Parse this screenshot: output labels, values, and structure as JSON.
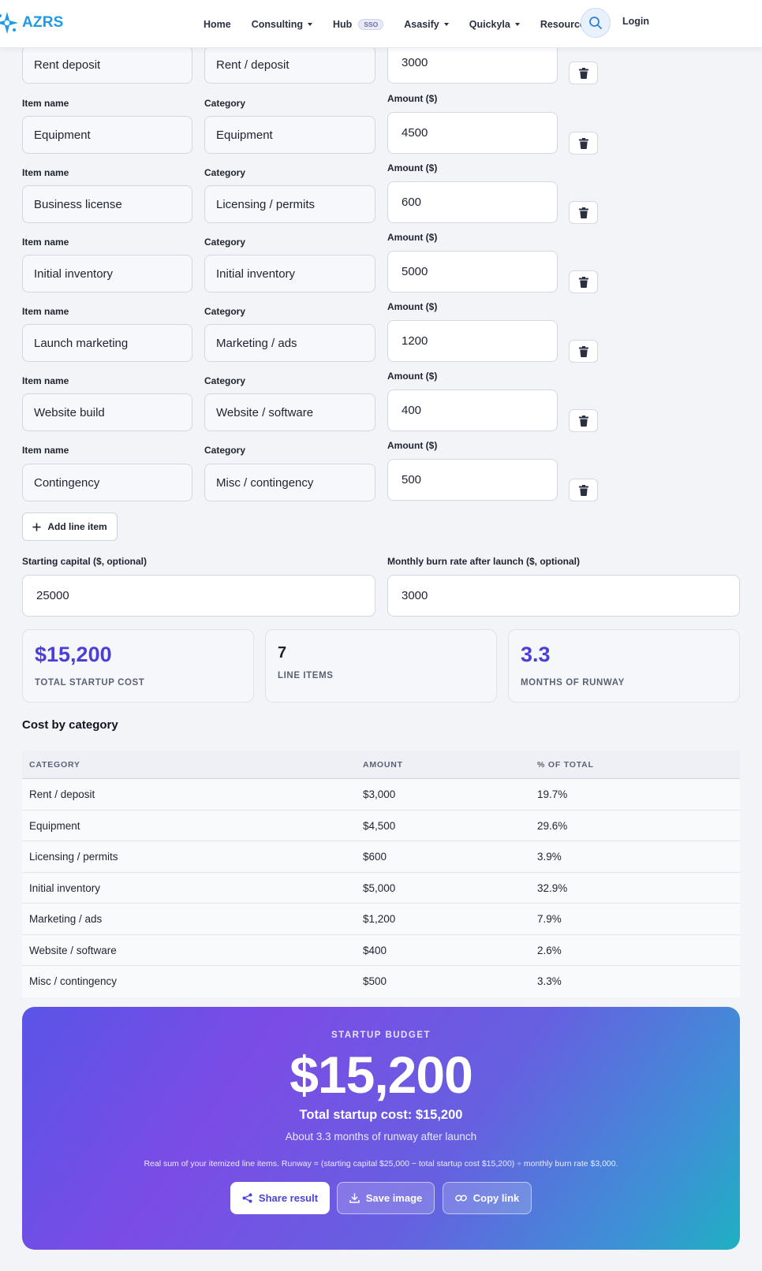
{
  "nav": {
    "brand": "AZRS",
    "links": [
      {
        "label": "Home",
        "dropdown": false
      },
      {
        "label": "Consulting",
        "dropdown": true
      },
      {
        "label": "Hub",
        "dropdown": false,
        "badge": "SSO"
      },
      {
        "label": "Asasify",
        "dropdown": true
      },
      {
        "label": "Quickyla",
        "dropdown": true
      },
      {
        "label": "Resources",
        "dropdown": true
      }
    ],
    "search_icon": "search-icon",
    "login": "Login"
  },
  "labels": {
    "item_name": "Item name",
    "category": "Category",
    "amount": "Amount ($)"
  },
  "items": [
    {
      "name": "Rent deposit",
      "category": "Rent / deposit",
      "amount": "3000"
    },
    {
      "name": "Equipment",
      "category": "Equipment",
      "amount": "4500"
    },
    {
      "name": "Business license",
      "category": "Licensing / permits",
      "amount": "600"
    },
    {
      "name": "Initial inventory",
      "category": "Initial inventory",
      "amount": "5000"
    },
    {
      "name": "Launch marketing",
      "category": "Marketing / ads",
      "amount": "1200"
    },
    {
      "name": "Website build",
      "category": "Website / software",
      "amount": "400"
    },
    {
      "name": "Contingency",
      "category": "Misc / contingency",
      "amount": "500"
    }
  ],
  "add_line_item": "Add line item",
  "capital": {
    "starting_label": "Starting capital ($, optional)",
    "starting_value": "25000",
    "burn_label": "Monthly burn rate after launch ($, optional)",
    "burn_value": "3000"
  },
  "stats": [
    {
      "value": "$15,200",
      "label": "TOTAL STARTUP COST",
      "color": "#4b3fd8"
    },
    {
      "value": "7",
      "label": "LINE ITEMS",
      "color": "#1f2330"
    },
    {
      "value": "3.3",
      "label": "MONTHS OF RUNWAY",
      "color": "#4b3fd8"
    }
  ],
  "table": {
    "title": "Cost by category",
    "headers": [
      "CATEGORY",
      "AMOUNT",
      "% OF TOTAL"
    ],
    "rows": [
      [
        "Rent / deposit",
        "$3,000",
        "19.7%"
      ],
      [
        "Equipment",
        "$4,500",
        "29.6%"
      ],
      [
        "Licensing / permits",
        "$600",
        "3.9%"
      ],
      [
        "Initial inventory",
        "$5,000",
        "32.9%"
      ],
      [
        "Marketing / ads",
        "$1,200",
        "7.9%"
      ],
      [
        "Website / software",
        "$400",
        "2.6%"
      ],
      [
        "Misc / contingency",
        "$500",
        "3.3%"
      ]
    ]
  },
  "result": {
    "eyebrow": "STARTUP BUDGET",
    "big": "$15,200",
    "subtitle": "Total startup cost: $15,200",
    "runway": "About 3.3 months of runway after launch",
    "note": "Real sum of your itemized line items. Runway = (starting capital $25,000 − total startup cost $15,200) ÷ monthly burn rate $3,000.",
    "share": "Share result",
    "save": "Save image",
    "copy": "Copy link"
  }
}
